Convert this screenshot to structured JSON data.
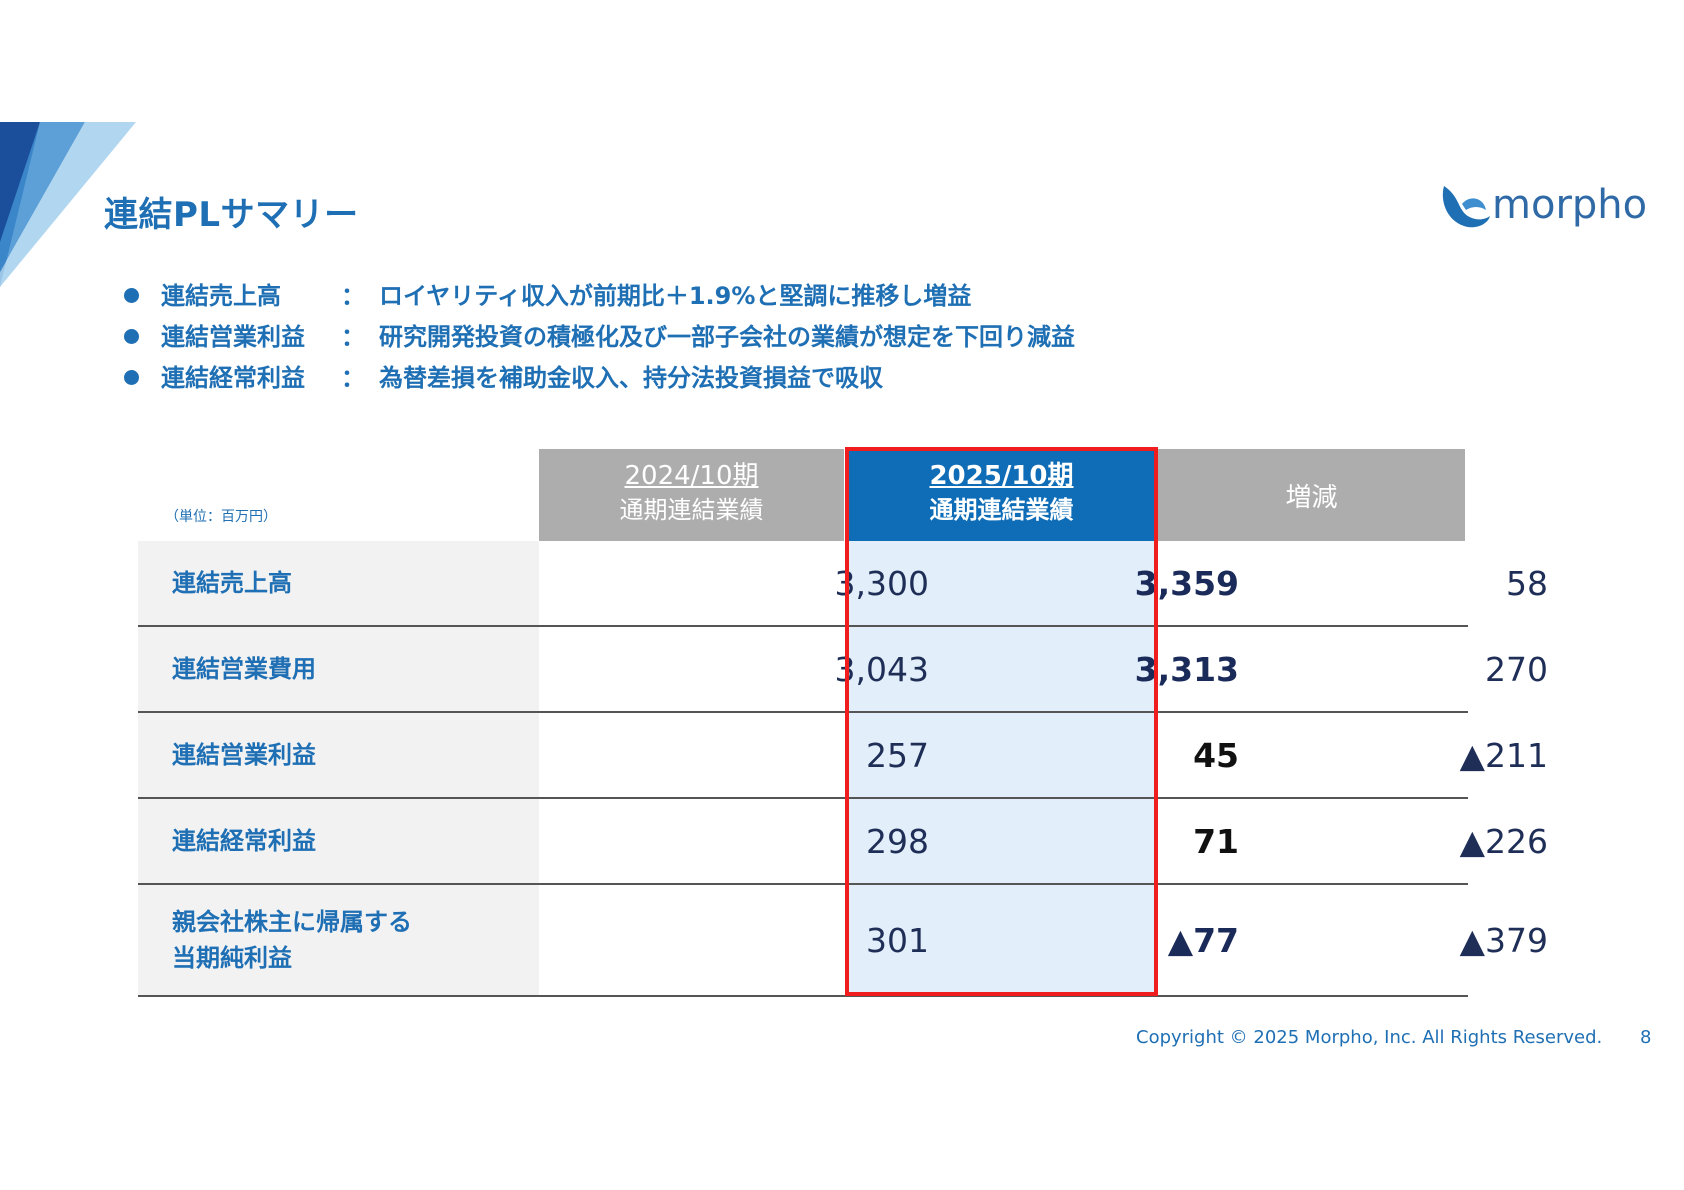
{
  "title": "連結PLサマリー",
  "logo_text": "morpho",
  "bullets": [
    {
      "label": "連結売上高",
      "colon": "：",
      "text": "ロイヤリティ収入が前期比＋1.9%と堅調に推移し増益"
    },
    {
      "label": "連結営業利益",
      "colon": "：",
      "text": "研究開発投資の積極化及び一部子会社の業績が想定を下回り減益"
    },
    {
      "label": "連結経常利益",
      "colon": "：",
      "text": "為替差損を補助金収入、持分法投資損益で吸収"
    }
  ],
  "table": {
    "unit_note": "（単位：百万円）",
    "headers": {
      "prev_period": "2024/10期",
      "prev_sub": "通期連結業績",
      "cur_period": "2025/10期",
      "cur_sub": "通期連結業績",
      "diff": "増減"
    },
    "rows": [
      {
        "label": "連結売上高",
        "label2": "",
        "prev": "3,300",
        "cur": "3,359",
        "diff": "58"
      },
      {
        "label": "連結営業費用",
        "label2": "",
        "prev": "3,043",
        "cur": "3,313",
        "diff": "270"
      },
      {
        "label": "連結営業利益",
        "label2": "",
        "prev": "257",
        "cur": "45",
        "diff": "▲211"
      },
      {
        "label": "連結経常利益",
        "label2": "",
        "prev": "298",
        "cur": "71",
        "diff": "▲226"
      },
      {
        "label": "親会社株主に帰属する",
        "label2": "当期純利益",
        "prev": "301",
        "cur": "▲77",
        "diff": "▲379"
      }
    ]
  },
  "footer": {
    "copyright": "Copyright © 2025 Morpho, Inc. All Rights Reserved.",
    "page": "8"
  },
  "colors": {
    "brand_blue": "#1f6fb4",
    "header_current": "#0f6db7",
    "header_other": "#adadad",
    "highlight_box": "#ef1d1d",
    "current_column_bg": "#e2eef9"
  }
}
